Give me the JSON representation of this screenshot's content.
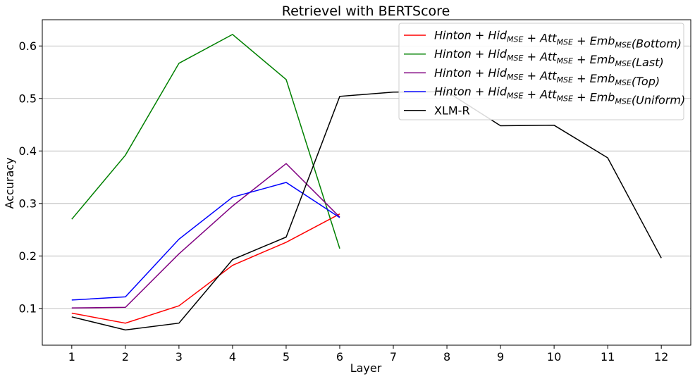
{
  "chart_data": {
    "type": "line",
    "title": "Retrievel with BERTScore",
    "xlabel": "Layer",
    "ylabel": "Accuracy",
    "x_ticks": [
      1,
      2,
      3,
      4,
      5,
      6,
      7,
      8,
      9,
      10,
      11,
      12
    ],
    "y_ticks": [
      0.1,
      0.2,
      0.3,
      0.4,
      0.5,
      0.6
    ],
    "y_tick_labels": [
      "0.1",
      "0.2",
      "0.3",
      "0.4",
      "0.5",
      "0.6"
    ],
    "xlim": [
      0.45,
      12.55
    ],
    "ylim": [
      0.03,
      0.65
    ],
    "grid": "horizontal",
    "legend_position": "top-right",
    "series": [
      {
        "name": "Hinton + Hid_MSE + Att_MSE + Emb_MSE(Bottom)",
        "color": "#ff0000",
        "x": [
          1,
          2,
          3,
          4,
          5,
          6
        ],
        "y": [
          0.091,
          0.072,
          0.105,
          0.182,
          0.226,
          0.28
        ]
      },
      {
        "name": "Hinton + Hid_MSE + Att_MSE + Emb_MSE(Last)",
        "color": "#008000",
        "x": [
          1,
          2,
          3,
          4,
          5,
          6
        ],
        "y": [
          0.27,
          0.392,
          0.567,
          0.622,
          0.536,
          0.214
        ]
      },
      {
        "name": "Hinton + Hid_MSE + Att_MSE + Emb_MSE(Top)",
        "color": "#800080",
        "x": [
          1,
          2,
          3,
          4,
          5,
          6
        ],
        "y": [
          0.101,
          0.102,
          0.204,
          0.295,
          0.376,
          0.274
        ]
      },
      {
        "name": "Hinton + Hid_MSE + Att_MSE + Emb_MSE(Uniform)",
        "color": "#0000ff",
        "x": [
          1,
          2,
          3,
          4,
          5,
          6
        ],
        "y": [
          0.116,
          0.122,
          0.232,
          0.312,
          0.34,
          0.273
        ]
      },
      {
        "name": "XLM-R",
        "color": "#000000",
        "x": [
          1,
          2,
          3,
          4,
          5,
          6,
          7,
          8,
          9,
          10,
          11,
          12
        ],
        "y": [
          0.084,
          0.059,
          0.072,
          0.193,
          0.236,
          0.504,
          0.512,
          0.513,
          0.448,
          0.449,
          0.387,
          0.196
        ]
      }
    ],
    "legend": [
      {
        "base": "Hinton",
        "hid": "Hid",
        "att": "Att",
        "emb": "Emb",
        "sub": "MSE",
        "variant": "(Bottom)"
      },
      {
        "base": "Hinton",
        "hid": "Hid",
        "att": "Att",
        "emb": "Emb",
        "sub": "MSE",
        "variant": "(Last)"
      },
      {
        "base": "Hinton",
        "hid": "Hid",
        "att": "Att",
        "emb": "Emb",
        "sub": "MSE",
        "variant": "(Top)"
      },
      {
        "base": "Hinton",
        "hid": "Hid",
        "att": "Att",
        "emb": "Emb",
        "sub": "MSE",
        "variant": "(Uniform)"
      },
      {
        "plain": "XLM-R"
      }
    ]
  }
}
